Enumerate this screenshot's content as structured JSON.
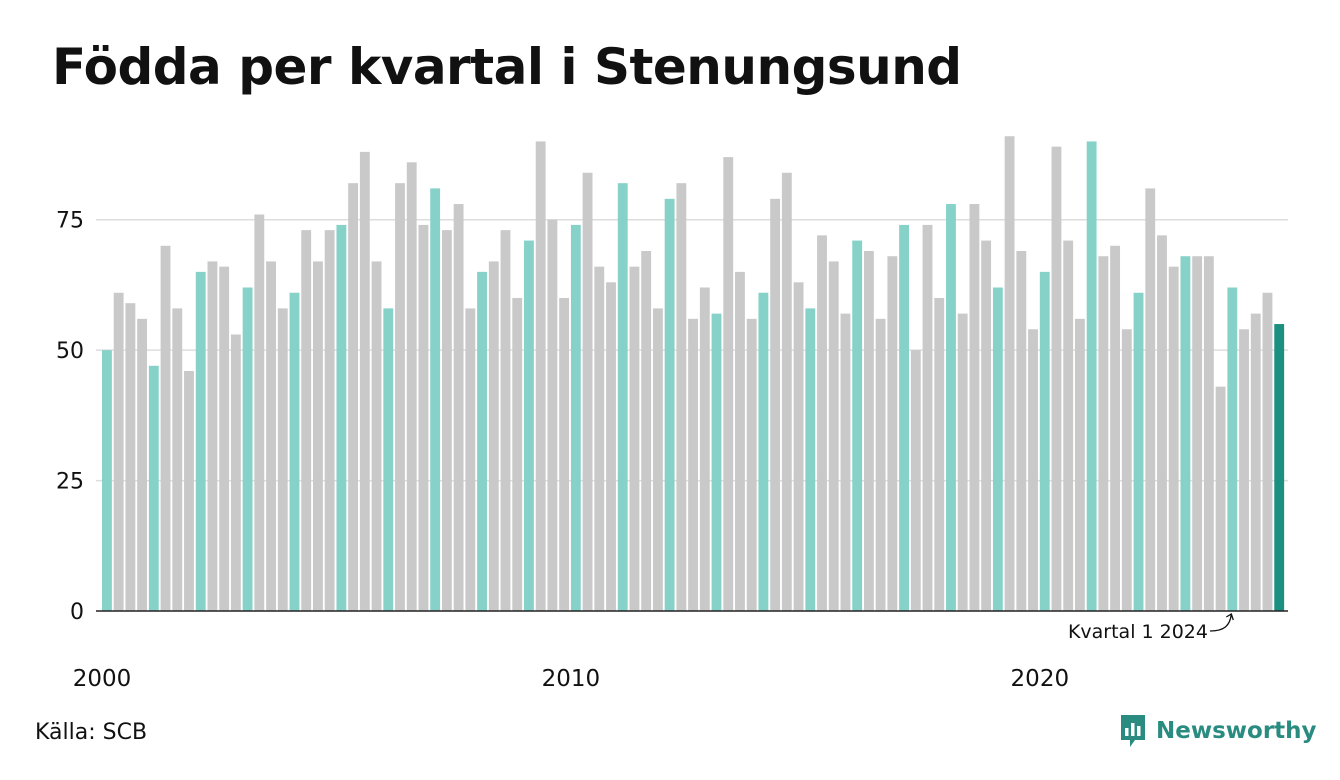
{
  "title": "Födda per kvartal i Stenungsund",
  "source": "Källa: SCB",
  "brand": {
    "name": "Newsworthy",
    "icon": "newsworthy-logo-icon"
  },
  "colors": {
    "highlight": "#86d2c9",
    "normal": "#c9c9c9",
    "current": "#1b9080",
    "grid": "#dddddd",
    "axis": "#222222"
  },
  "chart_data": {
    "type": "bar",
    "title": "Födda per kvartal i Stenungsund",
    "xlabel": "",
    "ylabel": "",
    "ylim": [
      0,
      92
    ],
    "yticks": [
      0,
      25,
      50,
      75
    ],
    "xtick_labels": [
      {
        "label": "2000",
        "index": 0
      },
      {
        "label": "2010",
        "index": 40
      },
      {
        "label": "2020",
        "index": 80
      }
    ],
    "highlight_rule": "first quarter of each year",
    "annotation": {
      "text": "Kvartal 1 2024",
      "index": 96
    },
    "grid": true,
    "start": "2000 Q1",
    "values": [
      50,
      61,
      59,
      56,
      47,
      70,
      58,
      46,
      65,
      67,
      66,
      53,
      62,
      76,
      67,
      58,
      61,
      73,
      67,
      73,
      74,
      82,
      88,
      67,
      58,
      82,
      86,
      74,
      81,
      73,
      78,
      58,
      65,
      67,
      73,
      60,
      71,
      90,
      75,
      60,
      74,
      84,
      66,
      63,
      82,
      66,
      69,
      58,
      79,
      82,
      56,
      62,
      57,
      87,
      65,
      56,
      61,
      79,
      84,
      63,
      58,
      72,
      67,
      57,
      71,
      69,
      56,
      68,
      74,
      50,
      74,
      60,
      78,
      57,
      78,
      71,
      62,
      91,
      69,
      54,
      65,
      89,
      71,
      56,
      90,
      68,
      70,
      54,
      61,
      81,
      72,
      66,
      68,
      68,
      68,
      43,
      62,
      54,
      57,
      61,
      55
    ]
  }
}
